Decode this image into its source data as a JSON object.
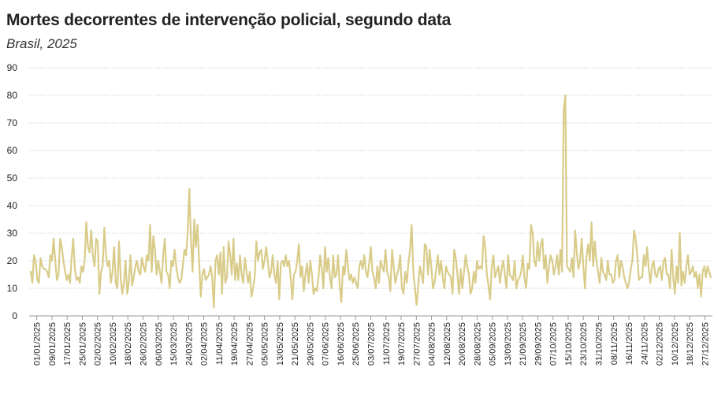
{
  "chart_data": {
    "type": "line",
    "title": "Mortes decorrentes de intervenção policial, segundo data",
    "subtitle": "Brasil, 2025",
    "xlabel": "",
    "ylabel": "",
    "ylim": [
      0,
      90
    ],
    "y_ticks": [
      0,
      10,
      20,
      30,
      40,
      50,
      60,
      70,
      80,
      90
    ],
    "grid": true,
    "legend": "none",
    "line_color": "#d9cc8a",
    "x_tick_labels": [
      "01/01/2025",
      "09/01/2025",
      "17/01/2025",
      "25/01/2025",
      "02/02/2025",
      "10/02/2025",
      "18/02/2025",
      "26/02/2025",
      "06/03/2025",
      "15/03/2025",
      "24/03/2025",
      "02/04/2025",
      "11/04/2025",
      "19/04/2025",
      "27/04/2025",
      "05/05/2025",
      "13/05/2025",
      "21/05/2025",
      "29/05/2025",
      "07/06/2025",
      "16/06/2025",
      "25/06/2025",
      "03/07/2025",
      "11/07/2025",
      "19/07/2025",
      "27/07/2025",
      "04/08/2025",
      "12/08/2025",
      "20/08/2025",
      "28/08/2025",
      "05/09/2025",
      "13/09/2025",
      "21/09/2025",
      "29/09/2025",
      "07/10/2025",
      "15/10/2025",
      "23/10/2025",
      "31/10/2025",
      "08/11/2025",
      "16/11/2025",
      "24/11/2025",
      "02/12/2025",
      "10/12/2025",
      "18/12/2025",
      "27/12/2025"
    ],
    "series": [
      {
        "start_date": "01/01/2025",
        "values": [
          16,
          12,
          22,
          20,
          13,
          12,
          21,
          18,
          17,
          17,
          16,
          14,
          22,
          20,
          28,
          20,
          13,
          15,
          28,
          25,
          20,
          16,
          13,
          15,
          12,
          21,
          28,
          17,
          13,
          14,
          12,
          18,
          16,
          20,
          34,
          25,
          23,
          31,
          22,
          18,
          28,
          27,
          8,
          16,
          18,
          32,
          22,
          18,
          20,
          12,
          16,
          25,
          12,
          10,
          27,
          14,
          8,
          12,
          20,
          8,
          12,
          22,
          11,
          14,
          18,
          20,
          16,
          15,
          21,
          18,
          16,
          22,
          20,
          33,
          16,
          29,
          24,
          15,
          20,
          16,
          12,
          22,
          28,
          16,
          15,
          10,
          20,
          18,
          24,
          18,
          14,
          12,
          13,
          18,
          24,
          22,
          30,
          46,
          28,
          16,
          35,
          25,
          33,
          20,
          7,
          15,
          17,
          13,
          14,
          15,
          18,
          14,
          3,
          20,
          22,
          15,
          23,
          8,
          25,
          12,
          14,
          27,
          22,
          15,
          28,
          13,
          19,
          13,
          22,
          15,
          12,
          21,
          16,
          12,
          16,
          7,
          10,
          14,
          27,
          20,
          23,
          24,
          17,
          20,
          25,
          20,
          14,
          16,
          22,
          15,
          12,
          20,
          6,
          19,
          20,
          18,
          22,
          18,
          20,
          14,
          6,
          15,
          16,
          20,
          26,
          14,
          18,
          9,
          15,
          19,
          12,
          20,
          15,
          8,
          10,
          9,
          14,
          22,
          17,
          10,
          25,
          16,
          21,
          14,
          10,
          22,
          14,
          15,
          22,
          11,
          5,
          18,
          15,
          24,
          18,
          13,
          15,
          12,
          14,
          12,
          10,
          18,
          20,
          17,
          22,
          16,
          14,
          19,
          25,
          16,
          14,
          10,
          18,
          12,
          20,
          18,
          16,
          24,
          16,
          14,
          9,
          24,
          18,
          12,
          15,
          17,
          22,
          10,
          8,
          16,
          12,
          19,
          24,
          33,
          16,
          10,
          4,
          11,
          18,
          15,
          12,
          26,
          25,
          15,
          24,
          18,
          10,
          12,
          17,
          22,
          15,
          20,
          14,
          10,
          18,
          16,
          15,
          14,
          8,
          24,
          21,
          15,
          8,
          17,
          10,
          16,
          22,
          18,
          15,
          8,
          10,
          16,
          12,
          20,
          17,
          18,
          17,
          29,
          25,
          15,
          11,
          6,
          18,
          22,
          14,
          16,
          18,
          12,
          17,
          20,
          15,
          10,
          22,
          15,
          14,
          13,
          20,
          10,
          13,
          14,
          16,
          22,
          14,
          10,
          19,
          17,
          33,
          30,
          20,
          18,
          27,
          20,
          26,
          28,
          17,
          22,
          12,
          18,
          22,
          20,
          15,
          18,
          22,
          15,
          24,
          16,
          75,
          80,
          18,
          17,
          16,
          21,
          14,
          31,
          23,
          17,
          20,
          28,
          18,
          10,
          22,
          26,
          20,
          34,
          18,
          27,
          20,
          16,
          12,
          21,
          16,
          15,
          13,
          20,
          15,
          15,
          12,
          13,
          20,
          22,
          14,
          20,
          18,
          14,
          12,
          10,
          12,
          17,
          20,
          31,
          28,
          22,
          13,
          14,
          14,
          22,
          18,
          25,
          17,
          12,
          18,
          20,
          15,
          14,
          17,
          18,
          13,
          20,
          21,
          15,
          15,
          10,
          24,
          14,
          8,
          18,
          12,
          30,
          11,
          16,
          12,
          18,
          22,
          15,
          16,
          18,
          14,
          16,
          10,
          15,
          7,
          16,
          18,
          14,
          18,
          16,
          14
        ]
      }
    ]
  }
}
